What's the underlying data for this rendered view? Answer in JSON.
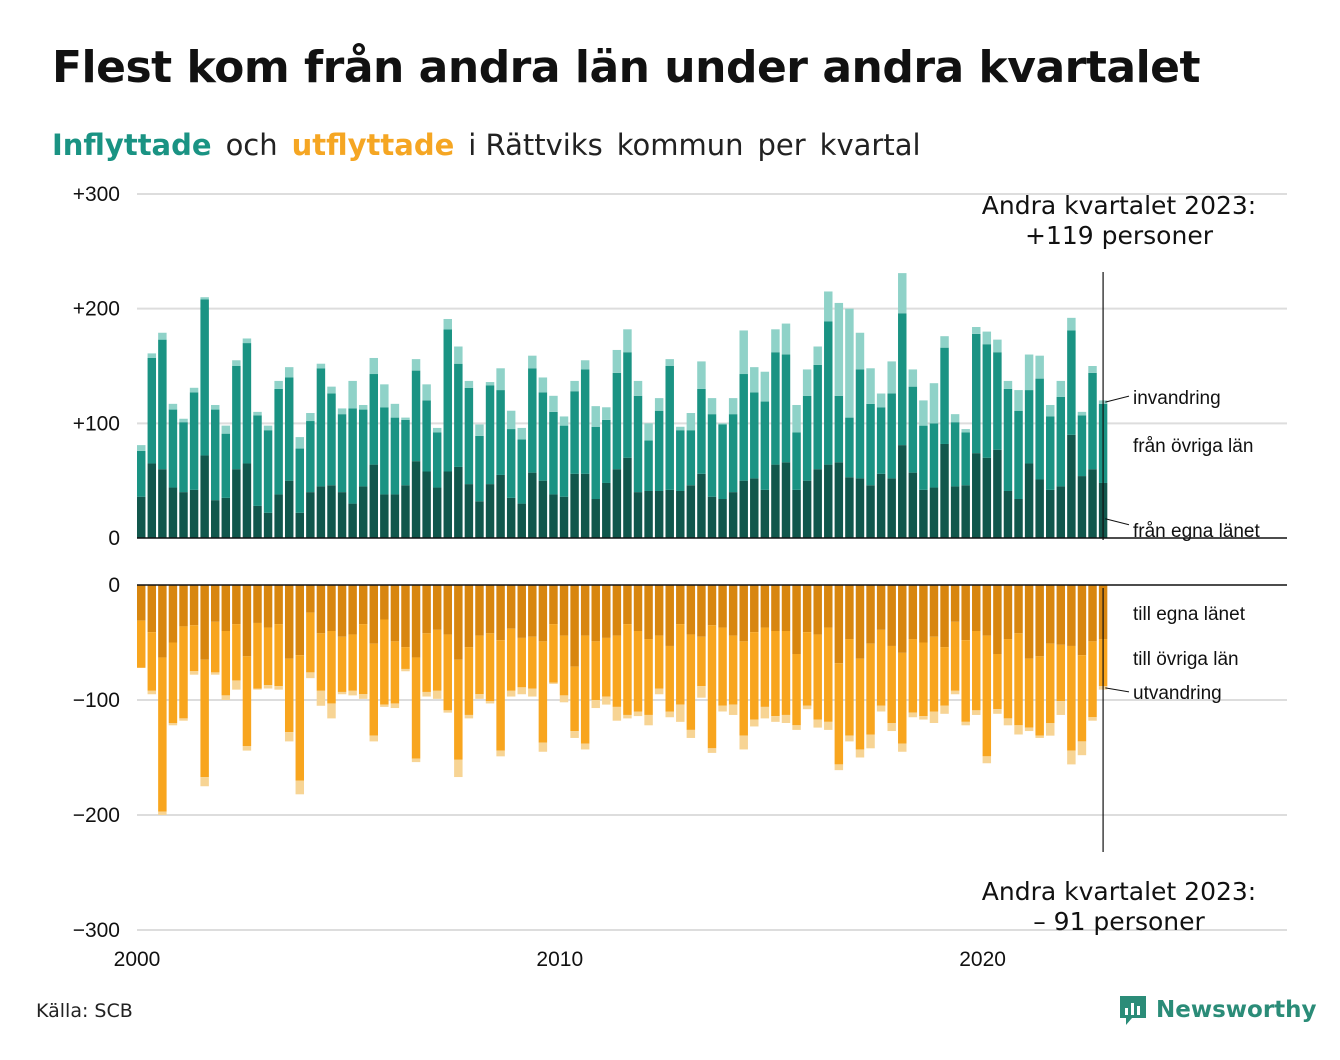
{
  "header": {
    "title": "Flest kom från andra län under andra kvartalet",
    "subtitle_in": "Inflyttade",
    "subtitle_and": "och",
    "subtitle_out": "utflyttade",
    "subtitle_rest1": "i Rättviks",
    "subtitle_rest2": "kommun",
    "subtitle_rest3": "per",
    "subtitle_rest4": "kvartal"
  },
  "footer": {
    "source": "Källa: SCB",
    "brand": "Newsworthy"
  },
  "colors": {
    "in_own": "#11574c",
    "in_other": "#1a9383",
    "in_imm": "#8fd2c8",
    "out_own": "#d8860f",
    "out_other": "#f8a51e",
    "out_emig": "#f7d494",
    "in_accent": "#1a9383",
    "out_accent": "#f5a623",
    "brand": "#2b8c78"
  },
  "chart_data": {
    "type": "bar",
    "stacked": true,
    "x_start": "2000 Q1",
    "x_end": "2023 Q2",
    "x_ticks": [
      "2000",
      "2010",
      "2020"
    ],
    "x_range": [
      2000,
      2027.2
    ],
    "y_ticks_top": [
      "+300",
      "+200",
      "+100",
      "0"
    ],
    "y_ticks_bottom": [
      "0",
      "−100",
      "−200",
      "−300"
    ],
    "ylim_top": [
      0,
      300
    ],
    "ylim_bottom": [
      -300,
      0
    ],
    "grid": true,
    "series_top": [
      {
        "name": "från egna länet",
        "values": [
          36,
          65,
          60,
          44,
          40,
          42,
          72,
          33,
          35,
          60,
          65,
          28,
          22,
          38,
          50,
          22,
          40,
          45,
          46,
          40,
          30,
          45,
          64,
          38,
          38,
          46,
          67,
          58,
          44,
          58,
          62,
          47,
          32,
          47,
          55,
          35,
          30,
          57,
          50,
          38,
          36,
          56,
          56,
          34,
          48,
          60,
          70,
          40,
          41,
          41,
          42,
          41,
          46,
          56,
          36,
          34,
          40,
          50,
          52,
          42,
          64,
          66,
          42,
          50,
          60,
          64,
          66,
          53,
          52,
          46,
          56,
          52,
          81,
          57,
          42,
          44,
          82,
          45,
          46,
          74,
          70,
          77,
          41,
          34,
          65,
          51,
          42,
          45,
          90,
          54,
          60,
          48
        ]
      },
      {
        "name": "från övriga län",
        "values": [
          40,
          92,
          113,
          68,
          61,
          85,
          136,
          79,
          56,
          90,
          105,
          79,
          72,
          92,
          90,
          56,
          62,
          103,
          80,
          68,
          83,
          67,
          79,
          76,
          67,
          57,
          79,
          62,
          48,
          124,
          90,
          84,
          57,
          86,
          74,
          60,
          56,
          91,
          77,
          72,
          62,
          72,
          91,
          63,
          55,
          84,
          92,
          84,
          44,
          70,
          108,
          53,
          48,
          74,
          72,
          65,
          68,
          93,
          75,
          77,
          98,
          94,
          50,
          74,
          91,
          125,
          58,
          52,
          95,
          71,
          58,
          74,
          115,
          75,
          56,
          56,
          84,
          56,
          46,
          104,
          99,
          85,
          89,
          77,
          64,
          88,
          64,
          78,
          91,
          53,
          84,
          69
        ]
      },
      {
        "name": "invandring",
        "values": [
          5,
          4,
          6,
          5,
          3,
          4,
          2,
          4,
          7,
          5,
          4,
          3,
          4,
          7,
          9,
          10,
          7,
          4,
          6,
          5,
          24,
          4,
          14,
          20,
          12,
          2,
          10,
          14,
          4,
          9,
          15,
          6,
          10,
          3,
          19,
          16,
          10,
          11,
          13,
          14,
          8,
          9,
          8,
          18,
          11,
          20,
          20,
          13,
          15,
          11,
          6,
          3,
          15,
          24,
          14,
          1,
          14,
          38,
          22,
          26,
          20,
          27,
          24,
          23,
          16,
          26,
          81,
          95,
          32,
          31,
          12,
          28,
          35,
          15,
          22,
          35,
          10,
          7,
          3,
          6,
          11,
          11,
          7,
          18,
          31,
          20,
          10,
          14,
          11,
          3,
          6,
          3
        ]
      }
    ],
    "series_bottom": [
      {
        "name": "till egna länet",
        "values": [
          31,
          41,
          63,
          50,
          36,
          35,
          65,
          32,
          40,
          34,
          62,
          33,
          37,
          34,
          64,
          61,
          24,
          42,
          40,
          45,
          43,
          34,
          51,
          30,
          49,
          54,
          63,
          42,
          39,
          43,
          65,
          54,
          44,
          42,
          48,
          38,
          46,
          45,
          49,
          34,
          44,
          71,
          44,
          49,
          46,
          44,
          34,
          40,
          47,
          44,
          53,
          34,
          43,
          45,
          35,
          37,
          44,
          49,
          41,
          37,
          40,
          40,
          60,
          41,
          43,
          37,
          68,
          47,
          64,
          51,
          39,
          53,
          59,
          47,
          50,
          45,
          54,
          32,
          48,
          40,
          44,
          60,
          47,
          42,
          64,
          62,
          51,
          52,
          53,
          61,
          49,
          47
        ]
      },
      {
        "name": "till övriga län",
        "values": [
          41,
          51,
          134,
          70,
          80,
          40,
          102,
          44,
          56,
          49,
          78,
          57,
          50,
          54,
          64,
          109,
          52,
          50,
          63,
          48,
          49,
          61,
          80,
          74,
          54,
          19,
          88,
          51,
          53,
          66,
          87,
          59,
          51,
          59,
          96,
          54,
          43,
          45,
          88,
          51,
          52,
          56,
          94,
          51,
          51,
          62,
          79,
          70,
          66,
          46,
          57,
          70,
          83,
          43,
          107,
          68,
          60,
          82,
          76,
          69,
          74,
          73,
          62,
          64,
          74,
          82,
          88,
          84,
          79,
          79,
          66,
          67,
          79,
          64,
          64,
          65,
          51,
          60,
          71,
          69,
          105,
          48,
          69,
          80,
          60,
          69,
          69,
          49,
          91,
          75,
          66,
          41
        ]
      },
      {
        "name": "utvandring",
        "values": [
          0,
          3,
          3,
          2,
          2,
          3,
          8,
          2,
          4,
          8,
          4,
          1,
          3,
          3,
          8,
          12,
          5,
          13,
          13,
          2,
          4,
          4,
          5,
          2,
          4,
          2,
          3,
          4,
          7,
          2,
          15,
          3,
          4,
          2,
          5,
          5,
          6,
          7,
          8,
          1,
          6,
          6,
          5,
          7,
          7,
          12,
          3,
          4,
          9,
          5,
          5,
          15,
          7,
          10,
          4,
          5,
          9,
          12,
          6,
          10,
          5,
          7,
          4,
          3,
          7,
          7,
          5,
          5,
          7,
          12,
          5,
          7,
          7,
          4,
          3,
          10,
          7,
          3,
          3,
          4,
          6,
          4,
          6,
          8,
          3,
          2,
          11,
          12,
          12,
          12,
          3,
          3
        ]
      }
    ],
    "annotations": {
      "top_1": "Andra kvartalet 2023:",
      "top_2": "+119 personer",
      "bottom_1": "Andra kvartalet 2023:",
      "bottom_2": "– 91 personer"
    },
    "series_labels": {
      "imm": "invandring",
      "in_other": "från övriga län",
      "in_own": "från egna länet",
      "out_own": "till egna länet",
      "out_other": "till övriga län",
      "emig": "utvandring"
    }
  }
}
